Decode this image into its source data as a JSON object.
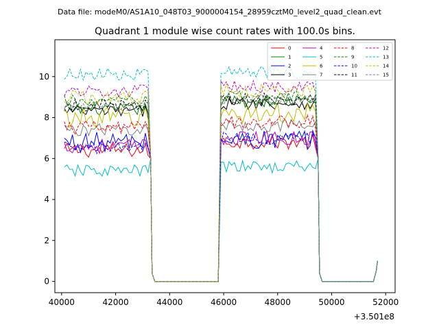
{
  "suptitle": "Data file: modeM0/AS1A10_048T03_9000004154_28959cztM0_level2_quad_clean.evt",
  "chart_data": {
    "type": "line",
    "title": "Quadrant 1 module wise count rates with 100.0s bins.",
    "xlabel": "",
    "ylabel": "",
    "x_offset_label": "+3.501e8",
    "xlim": [
      39750,
      52350
    ],
    "ylim": [
      -0.55,
      11.8
    ],
    "x_ticks": [
      40000,
      42000,
      44000,
      46000,
      48000,
      50000,
      52000
    ],
    "x_tick_labels": [
      "40000",
      "42000",
      "44000",
      "46000",
      "48000",
      "50000",
      "52000"
    ],
    "y_ticks": [
      0,
      2,
      4,
      6,
      8,
      10
    ],
    "y_tick_labels": [
      "0",
      "2",
      "4",
      "6",
      "8",
      "10"
    ],
    "legend_location": "top-right",
    "segments": {
      "seg1_x": [
        40100,
        43250
      ],
      "seg2_x": [
        45900,
        49450
      ],
      "bin": 100,
      "drop_points": [
        [
          43300,
          6.0
        ],
        [
          43350,
          0.4
        ],
        [
          43450,
          0.0
        ]
      ],
      "gap_end": 45800,
      "seg3": [
        [
          49500,
          6.0
        ],
        [
          49550,
          0.4
        ],
        [
          49650,
          0.0
        ],
        [
          51550,
          0.0
        ],
        [
          51650,
          0.5
        ],
        [
          51700,
          1.0
        ]
      ]
    },
    "series": [
      {
        "name": "0",
        "color": "#ff0000",
        "dash": "solid",
        "level1": 6.4,
        "level2": 6.8,
        "noise": 0.35
      },
      {
        "name": "1",
        "color": "#008000",
        "dash": "solid",
        "level1": 8.4,
        "level2": 8.8,
        "noise": 0.3
      },
      {
        "name": "2",
        "color": "#0000ff",
        "dash": "solid",
        "level1": 6.8,
        "level2": 6.9,
        "noise": 0.5
      },
      {
        "name": "3",
        "color": "#000000",
        "dash": "solid",
        "level1": 8.3,
        "level2": 8.7,
        "noise": 0.3
      },
      {
        "name": "4",
        "color": "#bf00bf",
        "dash": "solid",
        "level1": 6.6,
        "level2": 7.0,
        "noise": 0.35
      },
      {
        "name": "5",
        "color": "#00bfbf",
        "dash": "solid",
        "level1": 5.4,
        "level2": 5.6,
        "noise": 0.3
      },
      {
        "name": "6",
        "color": "#bfbf00",
        "dash": "solid",
        "level1": 8.0,
        "level2": 8.2,
        "noise": 0.5
      },
      {
        "name": "7",
        "color": "#808080",
        "dash": "solid",
        "level1": 7.4,
        "level2": 7.6,
        "noise": 0.3
      },
      {
        "name": "8",
        "color": "#ff0000",
        "dash": "dashed",
        "level1": 7.5,
        "level2": 7.8,
        "noise": 0.35
      },
      {
        "name": "9",
        "color": "#008000",
        "dash": "dashed",
        "level1": 8.8,
        "level2": 9.0,
        "noise": 0.3
      },
      {
        "name": "10",
        "color": "#0000ff",
        "dash": "dashed",
        "level1": 6.5,
        "level2": 7.0,
        "noise": 0.3
      },
      {
        "name": "11",
        "color": "#000000",
        "dash": "dashed",
        "level1": 8.6,
        "level2": 8.9,
        "noise": 0.3
      },
      {
        "name": "12",
        "color": "#bf00bf",
        "dash": "dashed",
        "level1": 9.3,
        "level2": 9.5,
        "noise": 0.3
      },
      {
        "name": "13",
        "color": "#00bfbf",
        "dash": "dashed",
        "level1": 10.1,
        "level2": 10.2,
        "noise": 0.3
      },
      {
        "name": "14",
        "color": "#bfbf00",
        "dash": "dashed",
        "level1": 9.0,
        "level2": 9.3,
        "noise": 0.35
      },
      {
        "name": "15",
        "color": "#808080",
        "dash": "dashed",
        "level1": 8.5,
        "level2": 8.9,
        "noise": 0.3
      }
    ]
  }
}
